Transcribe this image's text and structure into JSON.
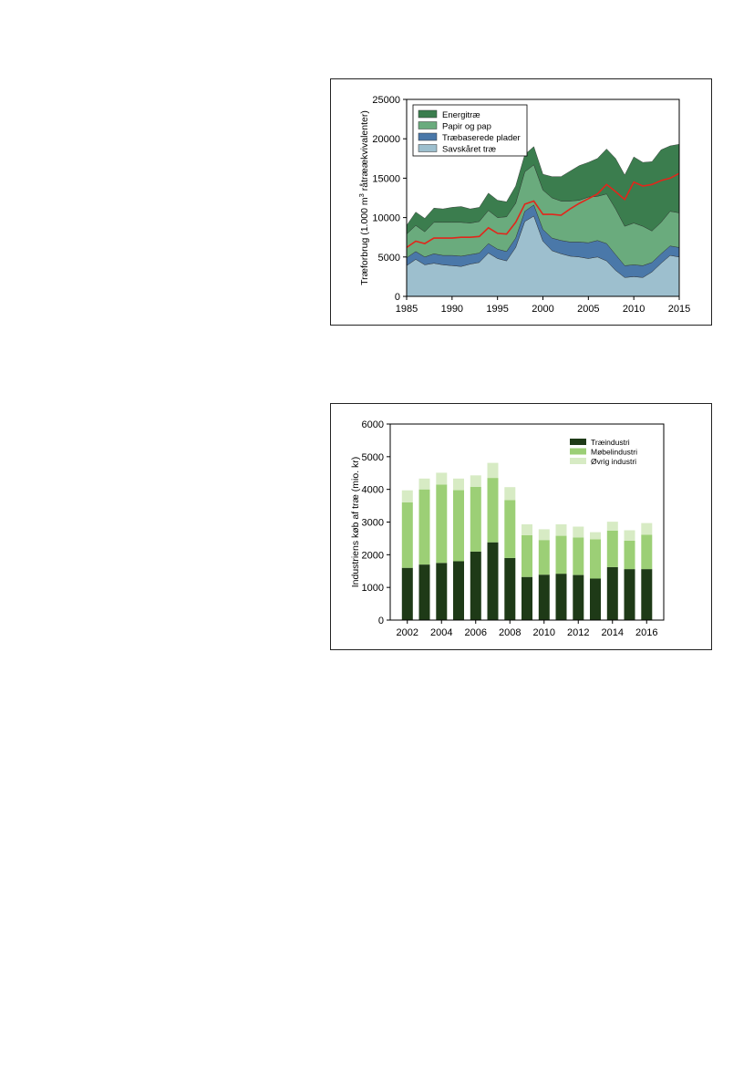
{
  "chart_data": [
    {
      "type": "area",
      "stacked": true,
      "title": "",
      "xlabel": "",
      "ylabel_prefix": "Træforbrug (1.000 m",
      "ylabel_sup": "3",
      "ylabel_suffix": " råtræækvivalenter)",
      "xlim": [
        1985,
        2015
      ],
      "ylim": [
        0,
        25000
      ],
      "x_ticks": [
        "1985",
        "1990",
        "1995",
        "2000",
        "2005",
        "2010",
        "2015"
      ],
      "y_ticks": [
        "0",
        "5000",
        "10000",
        "15000",
        "20000",
        "25000"
      ],
      "legend_position": "top-left",
      "grid": false,
      "x": [
        1985,
        1986,
        1987,
        1988,
        1989,
        1990,
        1991,
        1992,
        1993,
        1994,
        1995,
        1996,
        1997,
        1998,
        1999,
        2000,
        2001,
        2002,
        2003,
        2004,
        2005,
        2006,
        2007,
        2008,
        2009,
        2010,
        2011,
        2012,
        2013,
        2014,
        2015
      ],
      "series": [
        {
          "name": "Savskåret træ",
          "color": "#9dbfce",
          "values": [
            3900,
            4700,
            4000,
            4200,
            4000,
            3900,
            3800,
            4100,
            4300,
            5500,
            4800,
            4500,
            6200,
            9500,
            10200,
            7000,
            5800,
            5400,
            5100,
            5000,
            4800,
            5000,
            4500,
            3300,
            2400,
            2500,
            2400,
            3100,
            4200,
            5200,
            5000
          ]
        },
        {
          "name": "Træbaserede plader",
          "color": "#4a78a9",
          "values": [
            1000,
            1000,
            1000,
            1200,
            1200,
            1300,
            1300,
            1200,
            1200,
            1200,
            1200,
            1200,
            1200,
            1300,
            1400,
            1500,
            1600,
            1700,
            1800,
            1900,
            2000,
            2100,
            2200,
            2000,
            1500,
            1500,
            1500,
            1200,
            1200,
            1200,
            1200
          ]
        },
        {
          "name": "Papir og pap",
          "color": "#6aab7d",
          "values": [
            3000,
            3300,
            3200,
            4000,
            4200,
            4200,
            4300,
            4000,
            4000,
            4200,
            4000,
            4400,
            4400,
            5000,
            5100,
            5000,
            5100,
            5000,
            5200,
            5300,
            5800,
            5600,
            6300,
            5800,
            5000,
            5300,
            5000,
            4000,
            4000,
            4400,
            4400
          ]
        },
        {
          "name": "Energitræ",
          "color": "#3b7d4e",
          "values": [
            1100,
            1700,
            1700,
            1800,
            1700,
            1900,
            2000,
            1800,
            1800,
            2200,
            2200,
            1900,
            2200,
            2200,
            2300,
            2000,
            2700,
            3100,
            3800,
            4400,
            4400,
            4800,
            5700,
            6400,
            6500,
            8400,
            8100,
            8800,
            9200,
            8300,
            8700
          ]
        }
      ],
      "line": {
        "name": "",
        "color": "#e2261b",
        "values": [
          6200,
          7000,
          6700,
          7400,
          7400,
          7400,
          7500,
          7500,
          7600,
          8700,
          8000,
          7900,
          9400,
          11700,
          12100,
          10400,
          10400,
          10300,
          11100,
          11800,
          12400,
          13000,
          14200,
          13300,
          12300,
          14500,
          14000,
          14200,
          14700,
          15000,
          15600
        ]
      }
    },
    {
      "type": "bar",
      "stacked": true,
      "title": "",
      "xlabel": "",
      "ylabel": "Industriens køb af træ (mio. kr)",
      "ylim": [
        0,
        6000
      ],
      "y_ticks": [
        "0",
        "1000",
        "2000",
        "3000",
        "4000",
        "5000",
        "6000"
      ],
      "x_tick_labels": [
        "2002",
        "2004",
        "2006",
        "2008",
        "2010",
        "2012",
        "2014",
        "2016"
      ],
      "legend_position": "top-right",
      "grid": false,
      "categories": [
        "2002",
        "2003",
        "2004",
        "2005",
        "2006",
        "2007",
        "2008",
        "2009",
        "2010",
        "2011",
        "2012",
        "2013",
        "2014",
        "2015",
        "2016"
      ],
      "series": [
        {
          "name": "Træindustri",
          "color": "#1e3a17",
          "values": [
            1600,
            1700,
            1750,
            1800,
            2100,
            2380,
            1900,
            1320,
            1390,
            1420,
            1380,
            1270,
            1620,
            1560,
            1560
          ]
        },
        {
          "name": "Møbelindustri",
          "color": "#9ccf76",
          "values": [
            2000,
            2300,
            2400,
            2180,
            1980,
            1970,
            1770,
            1280,
            1060,
            1160,
            1150,
            1200,
            1120,
            870,
            1050
          ]
        },
        {
          "name": "Øvrig industri",
          "color": "#d7ebc4",
          "values": [
            370,
            330,
            360,
            350,
            350,
            460,
            400,
            330,
            330,
            350,
            330,
            220,
            270,
            320,
            360
          ]
        }
      ]
    }
  ]
}
